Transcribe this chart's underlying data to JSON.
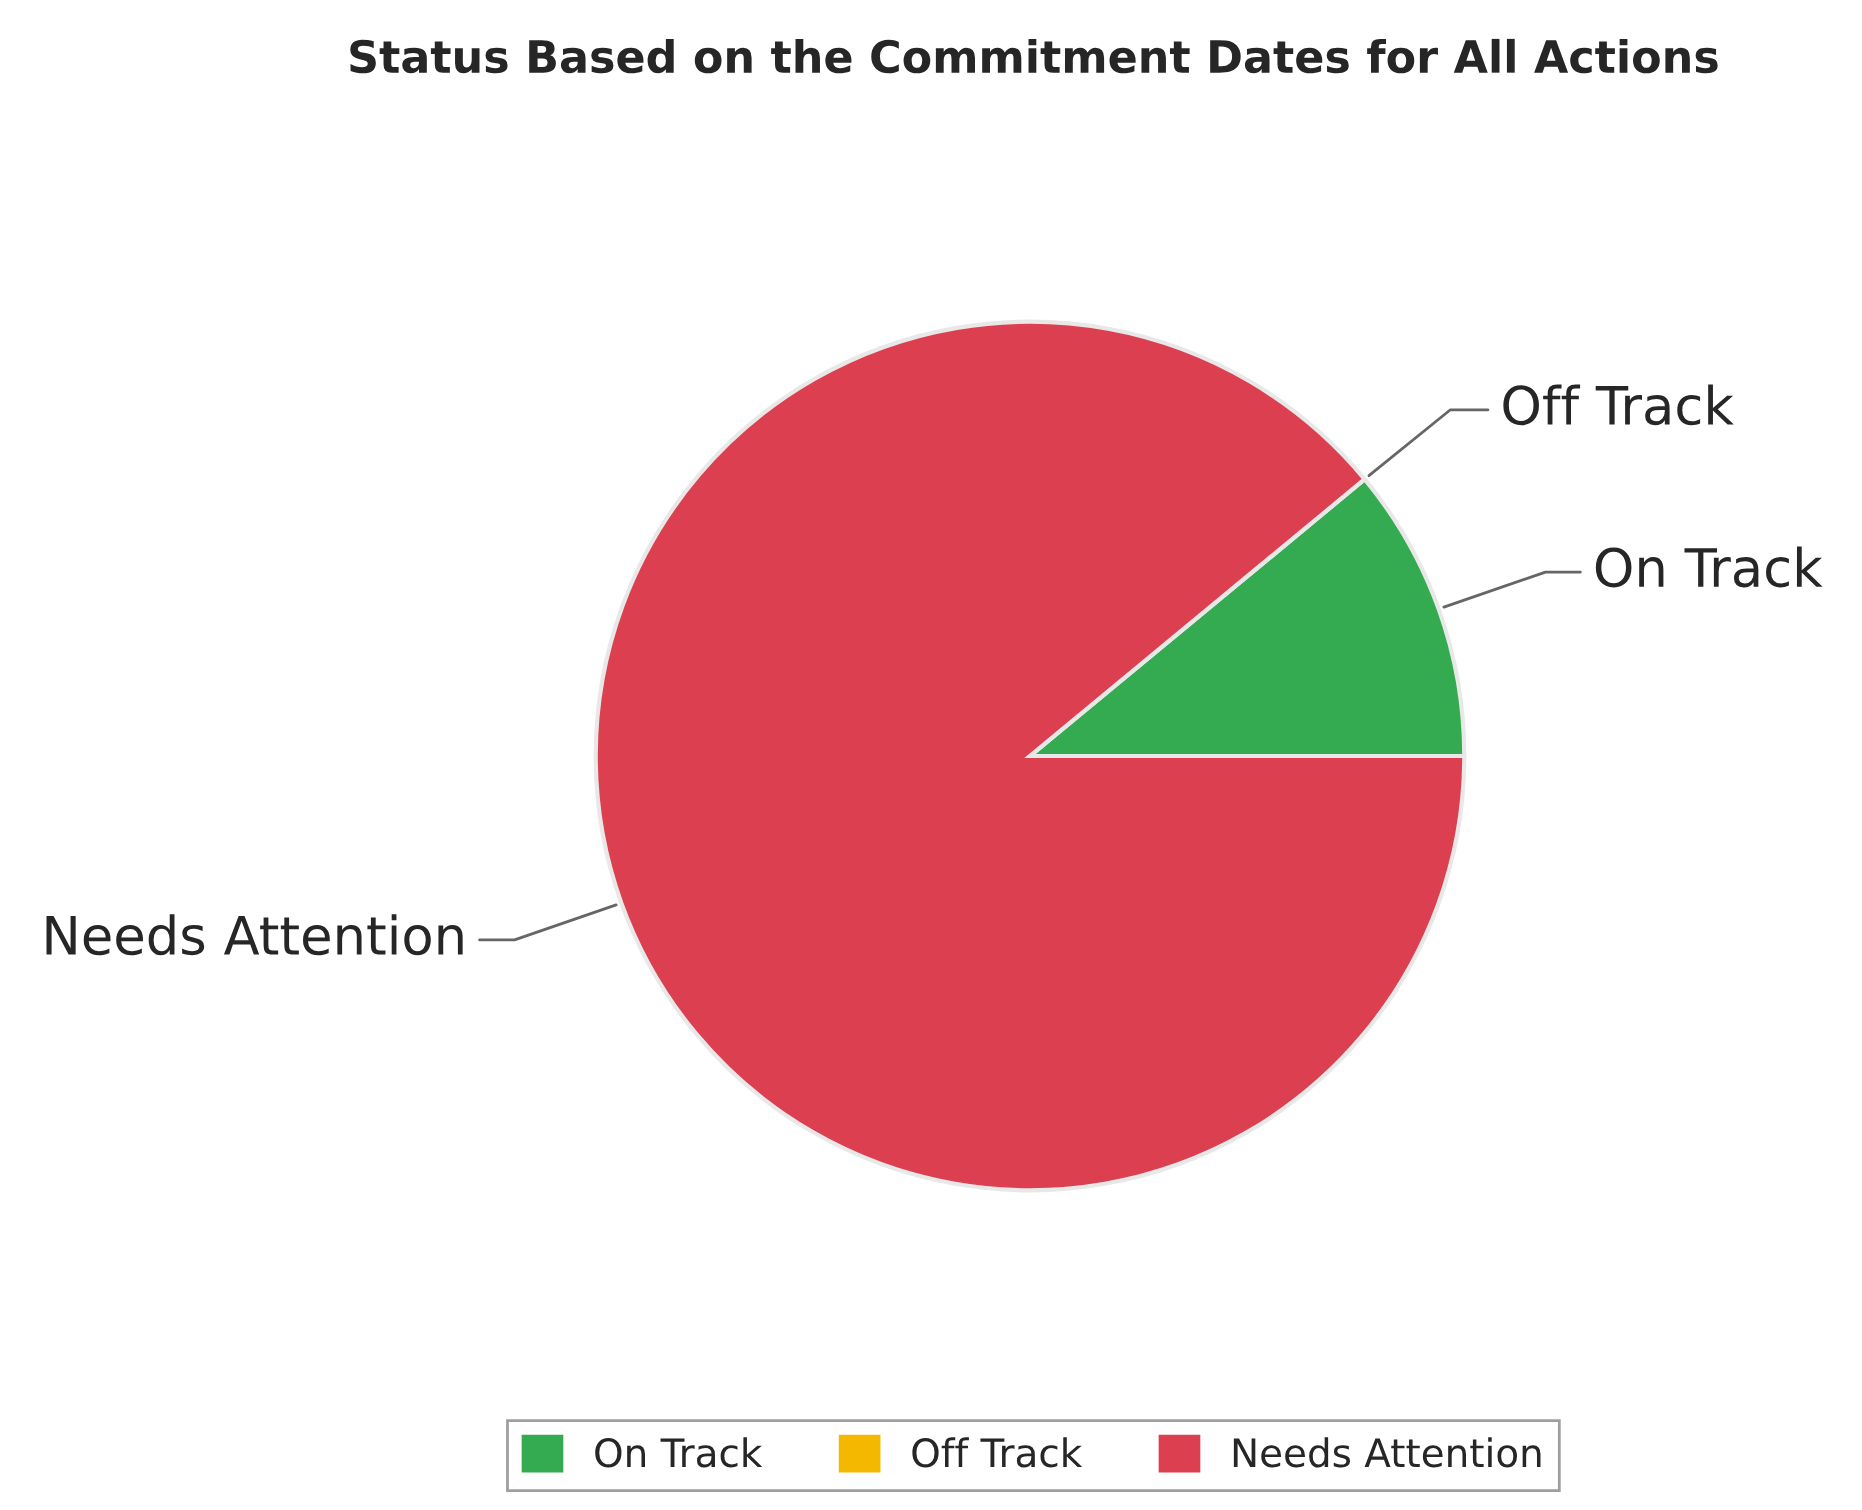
{
  "chart_data": {
    "type": "pie",
    "title": "Status Based on the Commitment Dates for All Actions",
    "categories": [
      "On Track",
      "Off Track",
      "Needs Attention"
    ],
    "values": [
      11,
      0,
      89
    ],
    "colors": [
      "#34ab50",
      "#f5b800",
      "#dc3f4f"
    ],
    "legend": "bottom"
  }
}
